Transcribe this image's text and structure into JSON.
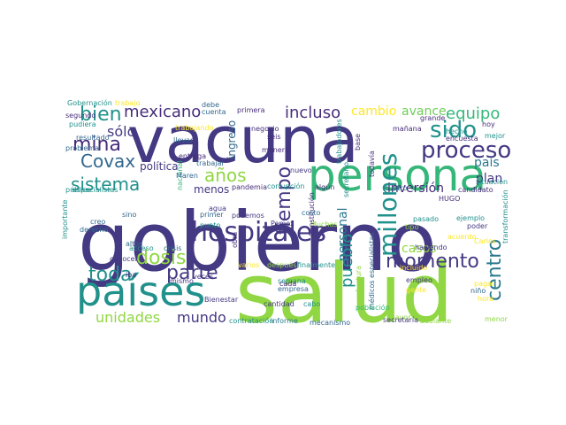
{
  "palette": {
    "dark_purple": "#443983",
    "teal": "#21918c",
    "green": "#35b779",
    "lime": "#90d743",
    "yellow": "#fde725",
    "deep": "#472d7b",
    "blue": "#31688e",
    "mid_teal": "#2a788e",
    "sea": "#1f9e89",
    "light_green": "#6ece58"
  },
  "words": [
    {
      "text": "gobierno",
      "color": "dark_purple"
    },
    {
      "text": "vacuna",
      "color": "dark_purple"
    },
    {
      "text": "salud",
      "color": "lime"
    },
    {
      "text": "persona",
      "color": "green"
    },
    {
      "text": "países",
      "color": "teal"
    },
    {
      "text": "hospitales",
      "color": "dark_purple"
    },
    {
      "text": "proceso",
      "color": "dark_purple"
    },
    {
      "text": "momento",
      "color": "dark_purple"
    },
    {
      "text": "millones",
      "color": "teal"
    },
    {
      "text": "centro",
      "color": "mid_teal"
    },
    {
      "text": "toda",
      "color": "teal"
    },
    {
      "text": "dosis",
      "color": "lime"
    },
    {
      "text": "parte",
      "color": "dark_purple"
    },
    {
      "text": "sido",
      "color": "teal"
    },
    {
      "text": "bien",
      "color": "teal"
    },
    {
      "text": "mina",
      "color": "deep"
    },
    {
      "text": "Covax",
      "color": "blue"
    },
    {
      "text": "sistema",
      "color": "teal"
    },
    {
      "text": "años",
      "color": "lime"
    },
    {
      "text": "mexicano",
      "color": "deep"
    },
    {
      "text": "incluso",
      "color": "deep"
    },
    {
      "text": "equipo",
      "color": "green"
    },
    {
      "text": "tiempo",
      "color": "dark_purple"
    },
    {
      "text": "unidades",
      "color": "lime"
    },
    {
      "text": "mundo",
      "color": "dark_purple"
    },
    {
      "text": "pueblo",
      "color": "teal"
    },
    {
      "text": "sólo",
      "color": "dark_purple"
    },
    {
      "text": "cambio",
      "color": "yellow"
    },
    {
      "text": "avance",
      "color": "light_green"
    },
    {
      "text": "inversión",
      "color": "deep"
    },
    {
      "text": "personal",
      "color": "mid_teal"
    },
    {
      "text": "casos",
      "color": "lime"
    },
    {
      "text": "plan",
      "color": "dark_purple"
    },
    {
      "text": "país",
      "color": "mid_teal"
    },
    {
      "text": "política",
      "color": "dark_purple"
    },
    {
      "text": "menos",
      "color": "dark_purple"
    },
    {
      "text": "ingreso",
      "color": "blue"
    },
    {
      "text": "especialistas",
      "color": "teal"
    },
    {
      "text": "médicos especialistas",
      "color": "blue"
    },
    {
      "text": "candidato",
      "color": "deep"
    },
    {
      "text": "hecho",
      "color": "teal"
    },
    {
      "text": "encuesta",
      "color": "deep"
    },
    {
      "text": "mañana",
      "color": "deep"
    },
    {
      "text": "primera",
      "color": "deep"
    },
    {
      "text": "negocio",
      "color": "deep"
    },
    {
      "text": "seis",
      "color": "deep"
    },
    {
      "text": "manera",
      "color": "deep"
    },
    {
      "text": "nuevo",
      "color": "dark_purple"
    },
    {
      "text": "pandemia",
      "color": "deep"
    },
    {
      "text": "corrupción",
      "color": "teal"
    },
    {
      "text": "trabajar",
      "color": "blue"
    },
    {
      "text": "agua",
      "color": "dark_purple"
    },
    {
      "text": "podemos",
      "color": "dark_purple"
    },
    {
      "text": "Pemex",
      "color": "dark_purple"
    },
    {
      "text": "Muchas",
      "color": "lime"
    },
    {
      "text": "derecho",
      "color": "blue"
    },
    {
      "text": "creo",
      "color": "blue"
    },
    {
      "text": "sino",
      "color": "blue"
    },
    {
      "text": "iba",
      "color": "dark_purple"
    },
    {
      "text": "crisis",
      "color": "blue"
    },
    {
      "text": "acceso",
      "color": "teal"
    },
    {
      "text": "conocer",
      "color": "dark_purple"
    },
    {
      "text": "mismo",
      "color": "dark_purple"
    },
    {
      "text": "veces",
      "color": "dark_purple"
    },
    {
      "text": "después",
      "color": "lime"
    },
    {
      "text": "finalmente",
      "color": "teal"
    },
    {
      "text": "semana",
      "color": "teal"
    },
    {
      "text": "empresa",
      "color": "blue"
    },
    {
      "text": "Bienestar",
      "color": "dark_purple"
    },
    {
      "text": "cantidad",
      "color": "dark_purple"
    },
    {
      "text": "cabo",
      "color": "teal"
    },
    {
      "text": "mecanismo",
      "color": "blue"
    },
    {
      "text": "informe",
      "color": "mid_teal"
    },
    {
      "text": "contratación",
      "color": "teal"
    },
    {
      "text": "población",
      "color": "green"
    },
    {
      "text": "mayor",
      "color": "lime"
    },
    {
      "text": "secretaría",
      "color": "dark_purple"
    },
    {
      "text": "adelante",
      "color": "lime"
    },
    {
      "text": "menor",
      "color": "lime"
    },
    {
      "text": "cobertura",
      "color": "lime"
    },
    {
      "text": "empleo",
      "color": "dark_purple"
    },
    {
      "text": "gente",
      "color": "yellow"
    },
    {
      "text": "niño",
      "color": "blue"
    },
    {
      "text": "hora",
      "color": "yellow"
    },
    {
      "text": "tipo",
      "color": "lime"
    },
    {
      "text": "pasado",
      "color": "teal"
    },
    {
      "text": "ejemplo",
      "color": "teal"
    },
    {
      "text": "poder",
      "color": "dark_purple"
    },
    {
      "text": "haciendo",
      "color": "dark_purple"
    },
    {
      "text": "transformación",
      "color": "teal"
    },
    {
      "text": "HUGO",
      "color": "deep"
    },
    {
      "text": "situación",
      "color": "teal"
    },
    {
      "text": "mejor",
      "color": "teal"
    },
    {
      "text": "hoy",
      "color": "deep"
    },
    {
      "text": "grande",
      "color": "deep"
    },
    {
      "text": "todavía",
      "color": "deep"
    },
    {
      "text": "base",
      "color": "deep"
    },
    {
      "text": "cuatro",
      "color": "blue"
    },
    {
      "text": "algún",
      "color": "deep"
    },
    {
      "text": "Constitución",
      "color": "deep"
    },
    {
      "text": "obra",
      "color": "deep"
    },
    {
      "text": "punto",
      "color": "teal"
    },
    {
      "text": "primer",
      "color": "blue"
    },
    {
      "text": "nacional",
      "color": "green"
    },
    {
      "text": "altos",
      "color": "blue"
    },
    {
      "text": "importante",
      "color": "teal"
    },
    {
      "text": "público",
      "color": "teal"
    },
    {
      "text": "problema",
      "color": "blue"
    },
    {
      "text": "pudiera",
      "color": "teal"
    },
    {
      "text": "segundo",
      "color": "deep"
    },
    {
      "text": "resultado",
      "color": "blue"
    },
    {
      "text": "Gobernación",
      "color": "teal"
    },
    {
      "text": "entrega",
      "color": "deep"
    },
    {
      "text": "llevar",
      "color": "blue"
    },
    {
      "text": "cuenta",
      "color": "blue"
    },
    {
      "text": "debe",
      "color": "blue"
    },
    {
      "text": "trabajando",
      "color": "yellow"
    },
    {
      "text": "trabajo",
      "color": "yellow"
    },
    {
      "text": "cada",
      "color": "deep"
    },
    {
      "text": "Maren",
      "color": "blue"
    },
    {
      "text": "costo",
      "color": "blue"
    },
    {
      "text": "trabajadores",
      "color": "teal"
    },
    {
      "text": "secretario",
      "color": "teal"
    },
    {
      "text": "varios",
      "color": "yellow"
    },
    {
      "text": "incluido",
      "color": "yellow"
    },
    {
      "text": "acuerdo",
      "color": "yellow"
    },
    {
      "text": "Carlos",
      "color": "yellow"
    },
    {
      "text": "pagar",
      "color": "yellow"
    }
  ]
}
